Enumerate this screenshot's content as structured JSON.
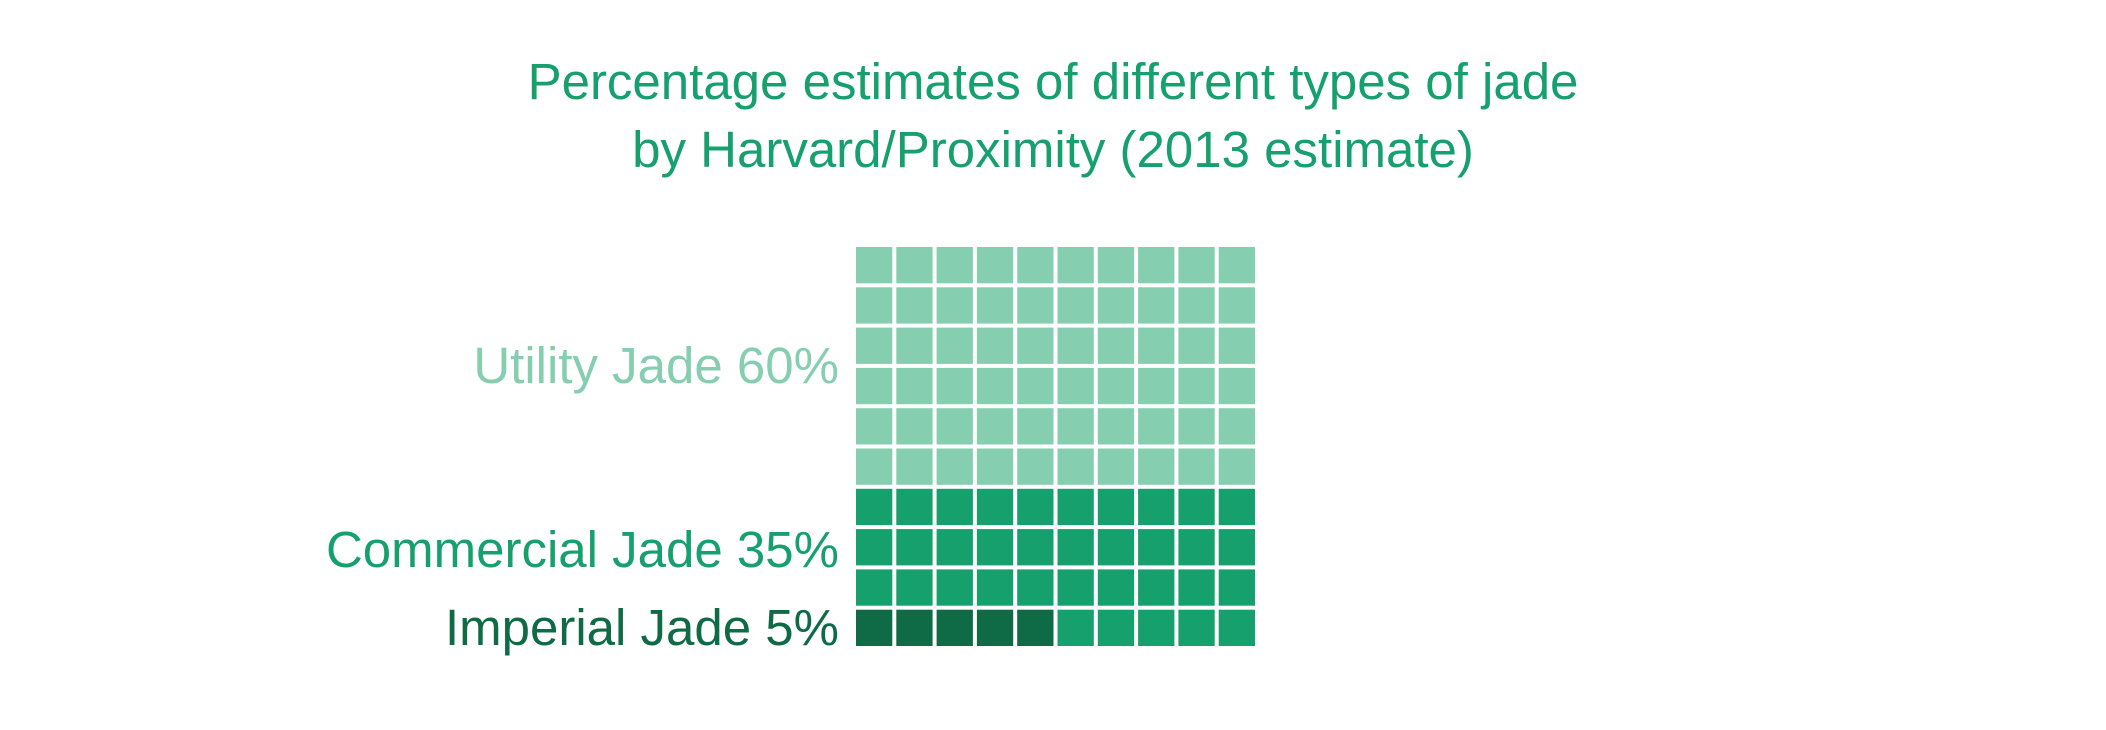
{
  "chart_data": {
    "type": "waffle",
    "title_lines": [
      "Percentage estimates of different types of jade",
      "by Harvard/Proximity (2013 estimate)"
    ],
    "grid": {
      "rows": 10,
      "cols": 10
    },
    "total_units": 100,
    "fill_order": "bottom-left to right, then upward",
    "series": [
      {
        "name": "Imperial Jade",
        "value": 5,
        "label": "Imperial Jade 5%",
        "color": "#0f6b46"
      },
      {
        "name": "Commercial Jade",
        "value": 35,
        "label": "Commercial Jade 35%",
        "color": "#16a06d"
      },
      {
        "name": "Utility Jade",
        "value": 60,
        "label": "Utility Jade 60%",
        "color": "#86ceb0"
      }
    ],
    "legend_placement": "left of grid"
  }
}
